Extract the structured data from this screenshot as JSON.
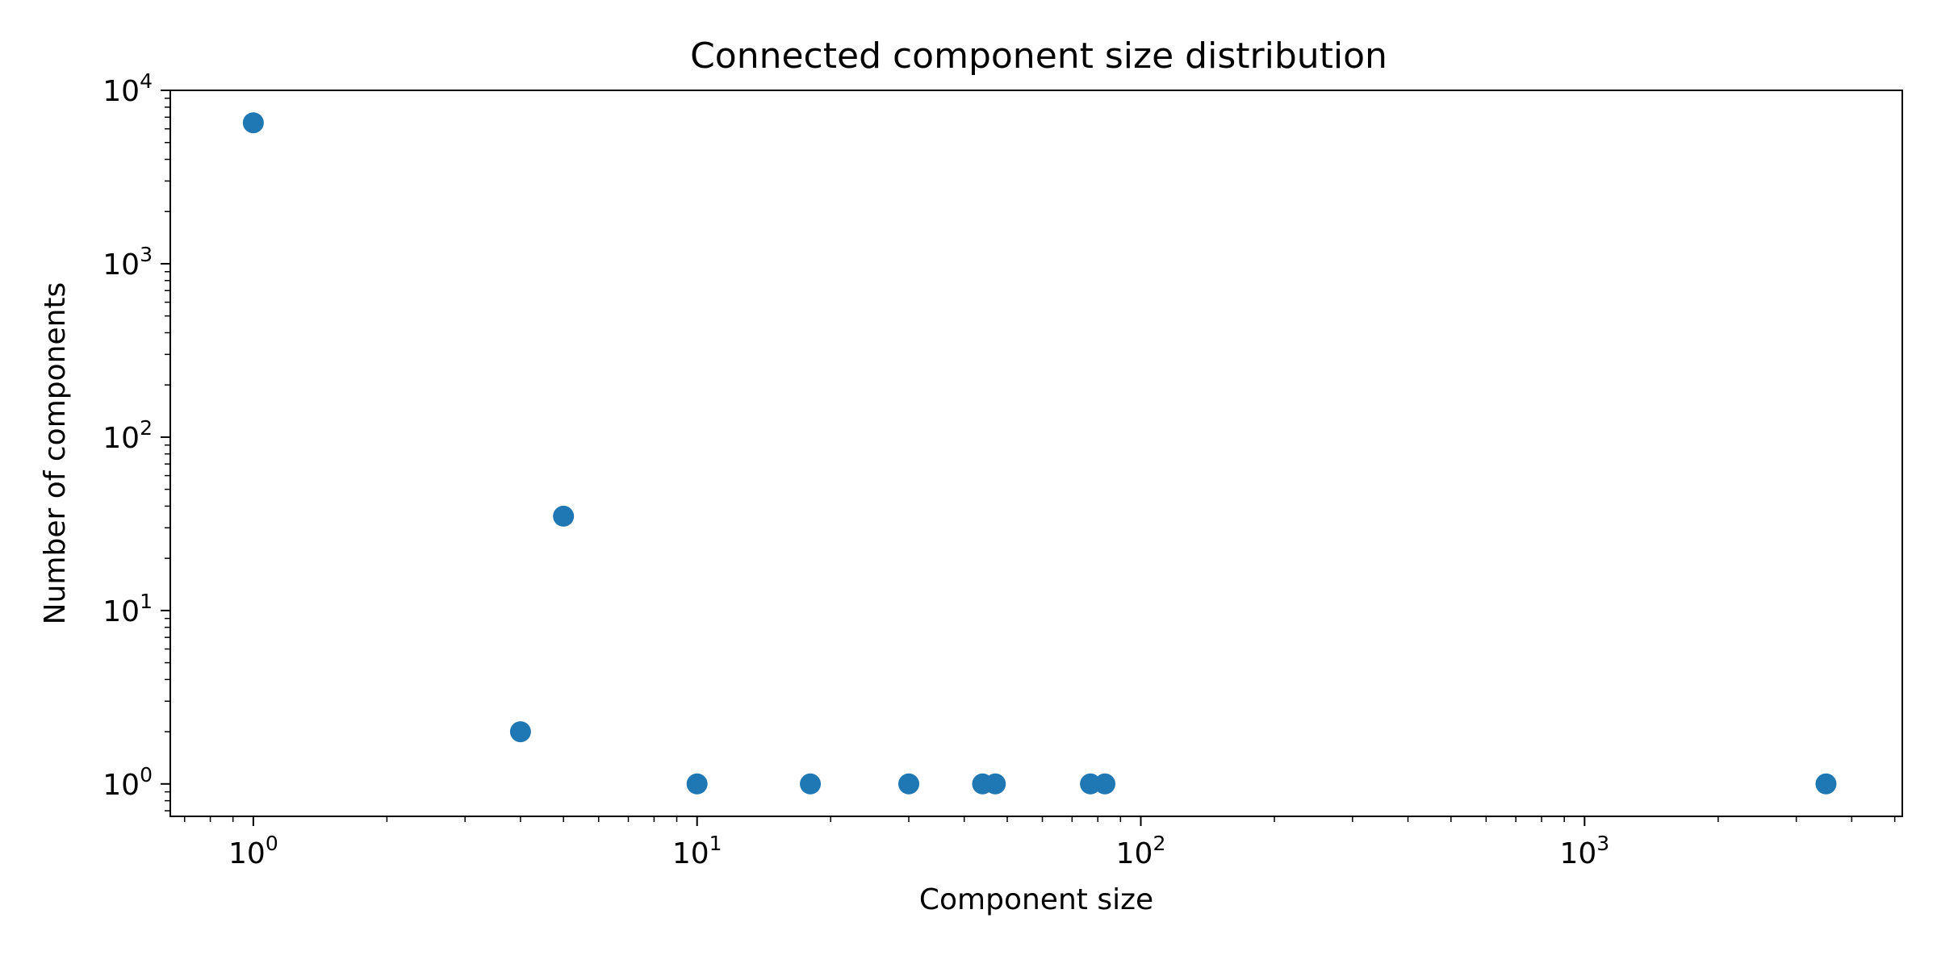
{
  "chart_data": {
    "type": "scatter",
    "title": "Connected component size distribution",
    "xlabel": "Component size",
    "ylabel": "Number of components",
    "xscale": "log",
    "yscale": "log",
    "xlim": [
      0.65,
      5200
    ],
    "ylim": [
      0.65,
      10000
    ],
    "x_ticks": [
      {
        "base": "10",
        "exp": "0",
        "value": 1
      },
      {
        "base": "10",
        "exp": "1",
        "value": 10
      },
      {
        "base": "10",
        "exp": "2",
        "value": 100
      },
      {
        "base": "10",
        "exp": "3",
        "value": 1000
      }
    ],
    "y_ticks": [
      {
        "base": "10",
        "exp": "0",
        "value": 1
      },
      {
        "base": "10",
        "exp": "1",
        "value": 10
      },
      {
        "base": "10",
        "exp": "2",
        "value": 100
      },
      {
        "base": "10",
        "exp": "3",
        "value": 1000
      },
      {
        "base": "10",
        "exp": "4",
        "value": 10000
      }
    ],
    "grid": false,
    "marker_color": "#1f77b4",
    "points": [
      {
        "x": 1,
        "y": 6500
      },
      {
        "x": 4,
        "y": 2
      },
      {
        "x": 5,
        "y": 35
      },
      {
        "x": 10,
        "y": 1
      },
      {
        "x": 18,
        "y": 1
      },
      {
        "x": 30,
        "y": 1
      },
      {
        "x": 44,
        "y": 1
      },
      {
        "x": 47,
        "y": 1
      },
      {
        "x": 77,
        "y": 1
      },
      {
        "x": 83,
        "y": 1
      },
      {
        "x": 3500,
        "y": 1
      }
    ]
  }
}
